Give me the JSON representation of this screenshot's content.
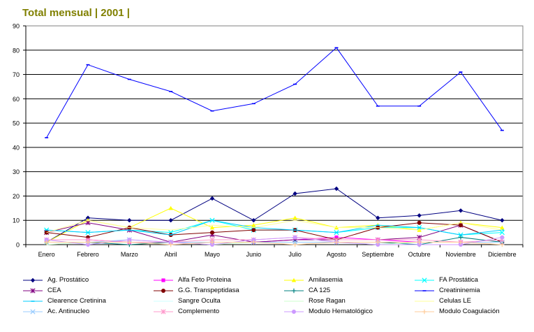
{
  "title": "Total mensual | 2001 |",
  "chart_data": {
    "type": "line",
    "title": "Total mensual | 2001 |",
    "xlabel": "",
    "ylabel": "",
    "ylim": [
      0,
      90
    ],
    "yticks": [
      0,
      10,
      20,
      30,
      40,
      50,
      60,
      70,
      80,
      90
    ],
    "grid": "horizontal",
    "legend_position": "bottom",
    "categories": [
      "Enero",
      "Febrero",
      "Marzo",
      "Abril",
      "Mayo",
      "Junio",
      "Julio",
      "Agosto",
      "Septiembre",
      "Octubre",
      "Noviembre",
      "Diciembre"
    ],
    "series": [
      {
        "name": "Ag. Prostático",
        "color": "#000080",
        "marker": "diamond",
        "values": [
          1,
          11,
          10,
          10,
          19,
          10,
          21,
          23,
          11,
          12,
          14,
          10
        ]
      },
      {
        "name": "Alfa Feto Proteina",
        "color": "#ff00ff",
        "marker": "square",
        "values": [
          2,
          2,
          1,
          1,
          1,
          1,
          2,
          3,
          2,
          1,
          1,
          1
        ]
      },
      {
        "name": "Amilasemia",
        "color": "#ffff00",
        "marker": "triangle",
        "values": [
          1,
          10,
          7,
          15,
          7,
          8,
          11,
          7,
          8,
          6,
          9,
          7
        ]
      },
      {
        "name": "FA Prostática",
        "color": "#00ffff",
        "marker": "x",
        "values": [
          6,
          5,
          6,
          5,
          10,
          6,
          6,
          5,
          7,
          7,
          4,
          5
        ]
      },
      {
        "name": "CEA",
        "color": "#800080",
        "marker": "star",
        "values": [
          5,
          9,
          6,
          1,
          4,
          1,
          2,
          2,
          2,
          3,
          8,
          1
        ]
      },
      {
        "name": "G.G. Transpeptidasa",
        "color": "#800000",
        "marker": "circle",
        "values": [
          5,
          3,
          7,
          4,
          5,
          6,
          6,
          2,
          7,
          9,
          8,
          1
        ]
      },
      {
        "name": "CA 125",
        "color": "#008080",
        "marker": "plus",
        "values": [
          1,
          1,
          0,
          1,
          1,
          1,
          1,
          1,
          1,
          0,
          3,
          1
        ]
      },
      {
        "name": "Creatininemia",
        "color": "#0000ff",
        "marker": "dash",
        "values": [
          44,
          74,
          68,
          63,
          55,
          58,
          66,
          81,
          57,
          57,
          71,
          47
        ]
      },
      {
        "name": "Clearence Cretinina",
        "color": "#00ccff",
        "marker": "dash",
        "values": [
          6,
          5,
          6,
          4,
          10,
          7,
          6,
          5,
          8,
          7,
          4,
          6
        ]
      },
      {
        "name": "Sangre Oculta",
        "color": "#ccffff",
        "marker": "none",
        "values": [
          1,
          1,
          1,
          1,
          1,
          1,
          1,
          1,
          1,
          1,
          1,
          1
        ]
      },
      {
        "name": "Rose Ragan",
        "color": "#ccffcc",
        "marker": "none",
        "values": [
          0,
          1,
          1,
          1,
          0,
          1,
          1,
          1,
          0,
          1,
          1,
          1
        ]
      },
      {
        "name": "Celulas LE",
        "color": "#ffff99",
        "marker": "none",
        "values": [
          5,
          10,
          7,
          6,
          8,
          7,
          10,
          7,
          7,
          6,
          9,
          6
        ]
      },
      {
        "name": "Ac. Antinucleo",
        "color": "#99ccff",
        "marker": "x",
        "values": [
          1,
          1,
          2,
          1,
          1,
          1,
          1,
          1,
          1,
          1,
          1,
          1
        ]
      },
      {
        "name": "Complemento",
        "color": "#ff99cc",
        "marker": "star",
        "values": [
          2,
          2,
          1,
          1,
          2,
          2,
          3,
          2,
          2,
          2,
          1,
          2
        ]
      },
      {
        "name": "Modulo Hematológico",
        "color": "#cc99ff",
        "marker": "circle",
        "values": [
          2,
          0,
          2,
          1,
          0,
          2,
          3,
          1,
          0,
          0,
          0,
          3
        ]
      },
      {
        "name": "Modulo Coagulación",
        "color": "#ffcc99",
        "marker": "plus",
        "values": [
          1,
          1,
          1,
          0,
          1,
          1,
          0,
          1,
          1,
          1,
          1,
          0
        ]
      }
    ]
  }
}
